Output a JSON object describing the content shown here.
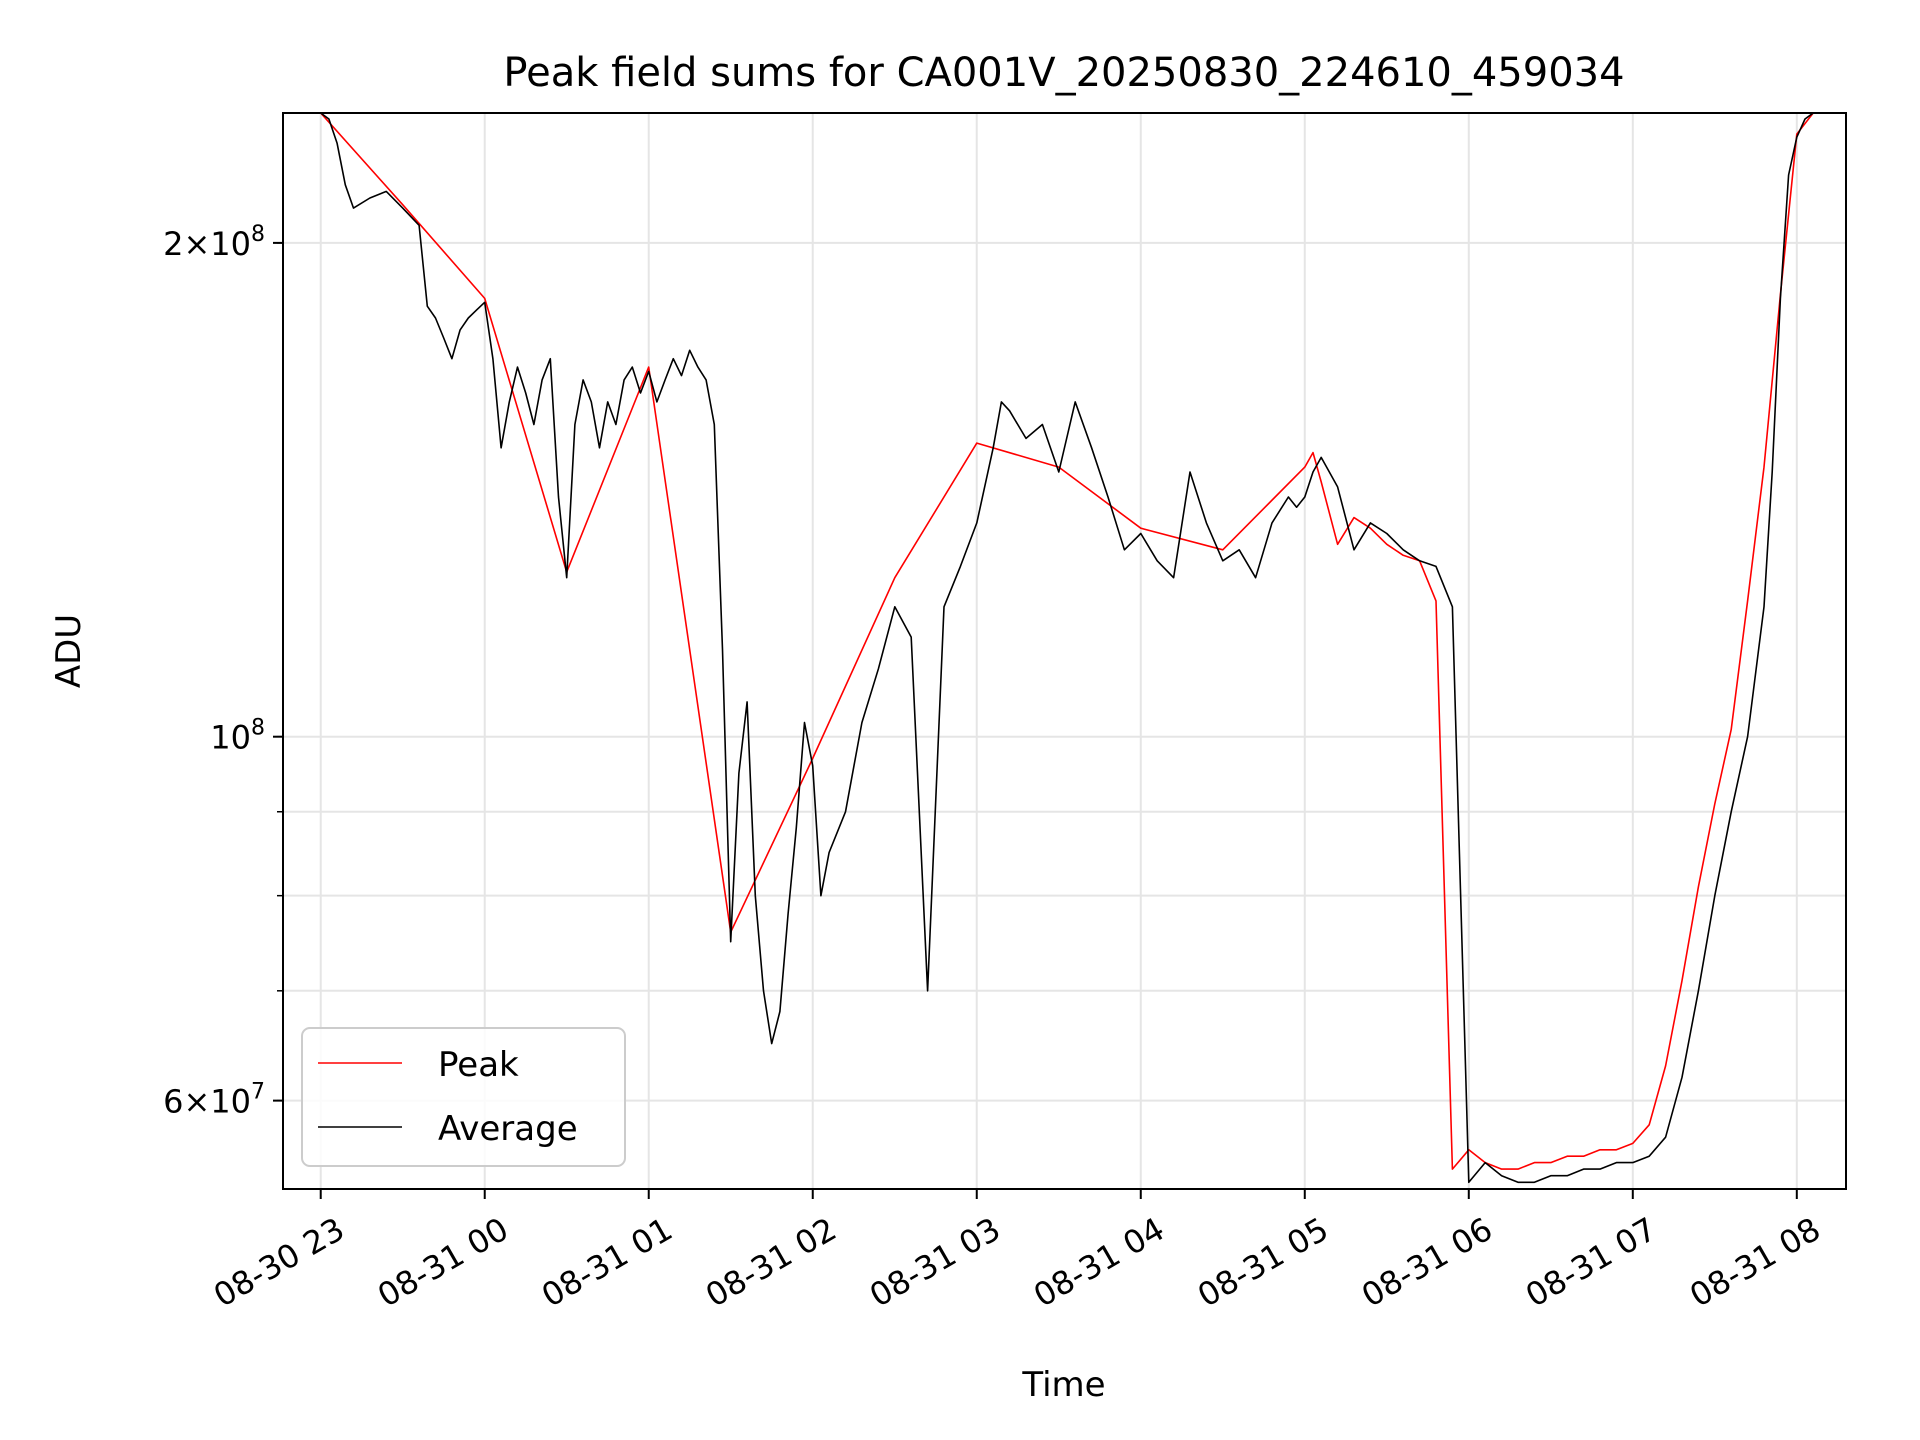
{
  "chart_data": {
    "type": "line",
    "title": "Peak field sums for CA001V_20250830_224610_459034",
    "xlabel": "Time",
    "ylabel": "ADU",
    "x_ticks": [
      "08-30 23",
      "08-31 00",
      "08-31 01",
      "08-31 02",
      "08-31 03",
      "08-31 04",
      "08-31 05",
      "08-31 06",
      "08-31 07",
      "08-31 08"
    ],
    "y_ticks": [
      {
        "value": 200000000,
        "mantissa": "2",
        "exp": "8"
      },
      {
        "value": 100000000,
        "mantissa": "",
        "exp": "8"
      },
      {
        "value": 60000000,
        "mantissa": "6",
        "exp": "7"
      }
    ],
    "y_scale": "log",
    "ylim": [
      53000000,
      240000000
    ],
    "xlim_hours": [
      -0.23,
      9.3
    ],
    "grid": true,
    "legend_position": "lower-left",
    "legend": [
      "Peak",
      "Average"
    ],
    "series": [
      {
        "name": "Average",
        "color": "#000000",
        "x_hours": [
          0.0,
          0.05,
          0.1,
          0.15,
          0.2,
          0.3,
          0.4,
          0.5,
          0.6,
          0.65,
          0.7,
          0.75,
          0.8,
          0.85,
          0.9,
          0.95,
          1.0,
          1.05,
          1.1,
          1.15,
          1.2,
          1.25,
          1.3,
          1.35,
          1.4,
          1.45,
          1.5,
          1.55,
          1.6,
          1.65,
          1.7,
          1.75,
          1.8,
          1.85,
          1.9,
          1.95,
          2.0,
          2.05,
          2.1,
          2.15,
          2.2,
          2.25,
          2.3,
          2.35,
          2.4,
          2.45,
          2.5,
          2.55,
          2.6,
          2.65,
          2.7,
          2.75,
          2.8,
          2.85,
          2.9,
          2.95,
          3.0,
          3.05,
          3.1,
          3.2,
          3.3,
          3.4,
          3.5,
          3.6,
          3.7,
          3.8,
          3.9,
          4.0,
          4.1,
          4.15,
          4.2,
          4.3,
          4.4,
          4.5,
          4.6,
          4.7,
          4.8,
          4.9,
          5.0,
          5.1,
          5.2,
          5.3,
          5.4,
          5.5,
          5.6,
          5.7,
          5.8,
          5.9,
          5.95,
          6.0,
          6.05,
          6.1,
          6.2,
          6.3,
          6.4,
          6.5,
          6.6,
          6.7,
          6.8,
          6.9,
          7.0,
          7.1,
          7.2,
          7.3,
          7.4,
          7.5,
          7.6,
          7.7,
          7.8,
          7.9,
          8.0,
          8.1,
          8.2,
          8.3,
          8.4,
          8.5,
          8.6,
          8.7,
          8.8,
          8.85,
          8.9,
          8.95,
          9.0,
          9.05,
          9.1
        ],
        "values": [
          240000000,
          238000000,
          230000000,
          217000000,
          210000000,
          213000000,
          215000000,
          210000000,
          205000000,
          183000000,
          180000000,
          175000000,
          170000000,
          177000000,
          180000000,
          182000000,
          184000000,
          170000000,
          150000000,
          160000000,
          168000000,
          162000000,
          155000000,
          165000000,
          170000000,
          140000000,
          125000000,
          155000000,
          165000000,
          160000000,
          150000000,
          160000000,
          155000000,
          165000000,
          168000000,
          162000000,
          167000000,
          160000000,
          165000000,
          170000000,
          166000000,
          172000000,
          168000000,
          165000000,
          155000000,
          113000000,
          75000000,
          95000000,
          105000000,
          80000000,
          70000000,
          65000000,
          68000000,
          78000000,
          88000000,
          102000000,
          96000000,
          80000000,
          85000000,
          90000000,
          102000000,
          110000000,
          120000000,
          115000000,
          70000000,
          120000000,
          127000000,
          135000000,
          150000000,
          160000000,
          158000000,
          152000000,
          155000000,
          145000000,
          160000000,
          150000000,
          140000000,
          130000000,
          133000000,
          128000000,
          125000000,
          145000000,
          135000000,
          128000000,
          130000000,
          125000000,
          135000000,
          140000000,
          138000000,
          140000000,
          145000000,
          148000000,
          142000000,
          130000000,
          135000000,
          133000000,
          130000000,
          128000000,
          127000000,
          120000000,
          53500000,
          55000000,
          54000000,
          53500000,
          53500000,
          54000000,
          54000000,
          54500000,
          54500000,
          55000000,
          55000000,
          55500000,
          57000000,
          62000000,
          70000000,
          80000000,
          90000000,
          100000000,
          120000000,
          145000000,
          185000000,
          220000000,
          232000000,
          238000000,
          240000000
        ]
      },
      {
        "name": "Peak",
        "color": "#ff0000",
        "x_hours": [
          0.0,
          0.5,
          1.0,
          1.5,
          2.0,
          2.5,
          3.0,
          3.5,
          4.0,
          4.5,
          5.0,
          5.5,
          6.0,
          6.05,
          6.1,
          6.2,
          6.3,
          6.4,
          6.5,
          6.6,
          6.7,
          6.8,
          6.9,
          7.0,
          7.1,
          7.2,
          7.3,
          7.4,
          7.5,
          7.6,
          7.7,
          7.8,
          7.9,
          8.0,
          8.1,
          8.2,
          8.3,
          8.4,
          8.5,
          8.6,
          8.7,
          8.8,
          8.9,
          9.0,
          9.1
        ],
        "values": [
          240000000,
          211000000,
          185000000,
          126000000,
          168000000,
          76000000,
          97000000,
          125000000,
          151000000,
          146000000,
          134000000,
          130000000,
          146000000,
          149000000,
          143000000,
          131000000,
          136000000,
          134000000,
          131000000,
          129000000,
          128000000,
          121000000,
          54500000,
          56000000,
          55000000,
          54500000,
          54500000,
          55000000,
          55000000,
          55500000,
          55500000,
          56000000,
          56000000,
          56500000,
          58000000,
          63000000,
          71000000,
          81000000,
          91000000,
          101000000,
          121000000,
          146000000,
          186000000,
          233000000,
          240000000
        ]
      }
    ]
  }
}
